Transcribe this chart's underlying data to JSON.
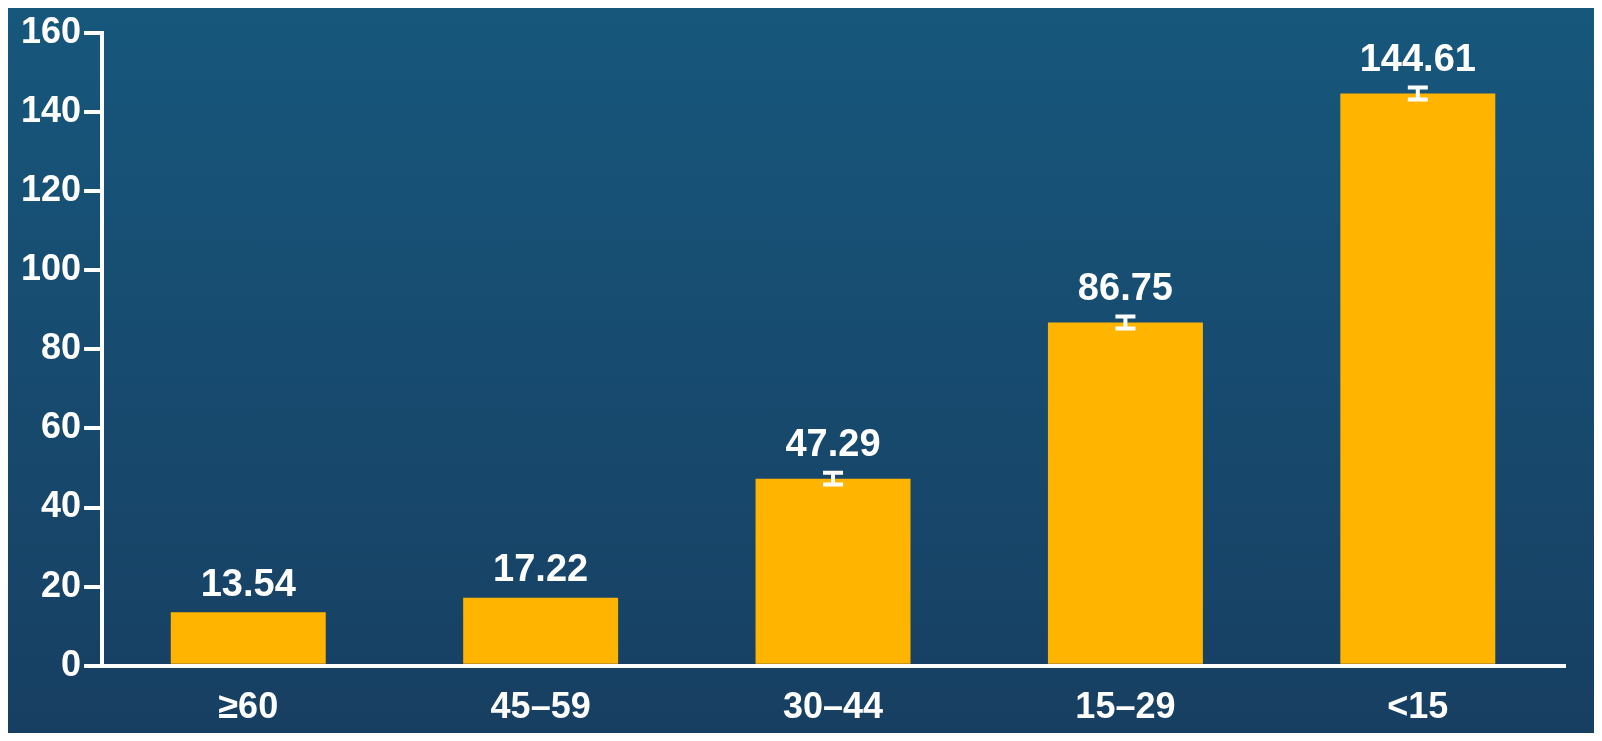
{
  "chart_data": {
    "type": "bar",
    "categories": [
      "≥60",
      "45–59",
      "30–44",
      "15–29",
      "<15"
    ],
    "values": [
      13.54,
      17.22,
      47.29,
      86.75,
      144.61
    ],
    "errors": [
      null,
      null,
      1.5,
      1.5,
      1.5
    ],
    "color": "#ffb400",
    "ylim": [
      0,
      160
    ],
    "yticks": [
      0,
      20,
      40,
      60,
      80,
      100,
      120,
      140,
      160
    ],
    "data_labels": true,
    "grid": false,
    "legend": false
  }
}
